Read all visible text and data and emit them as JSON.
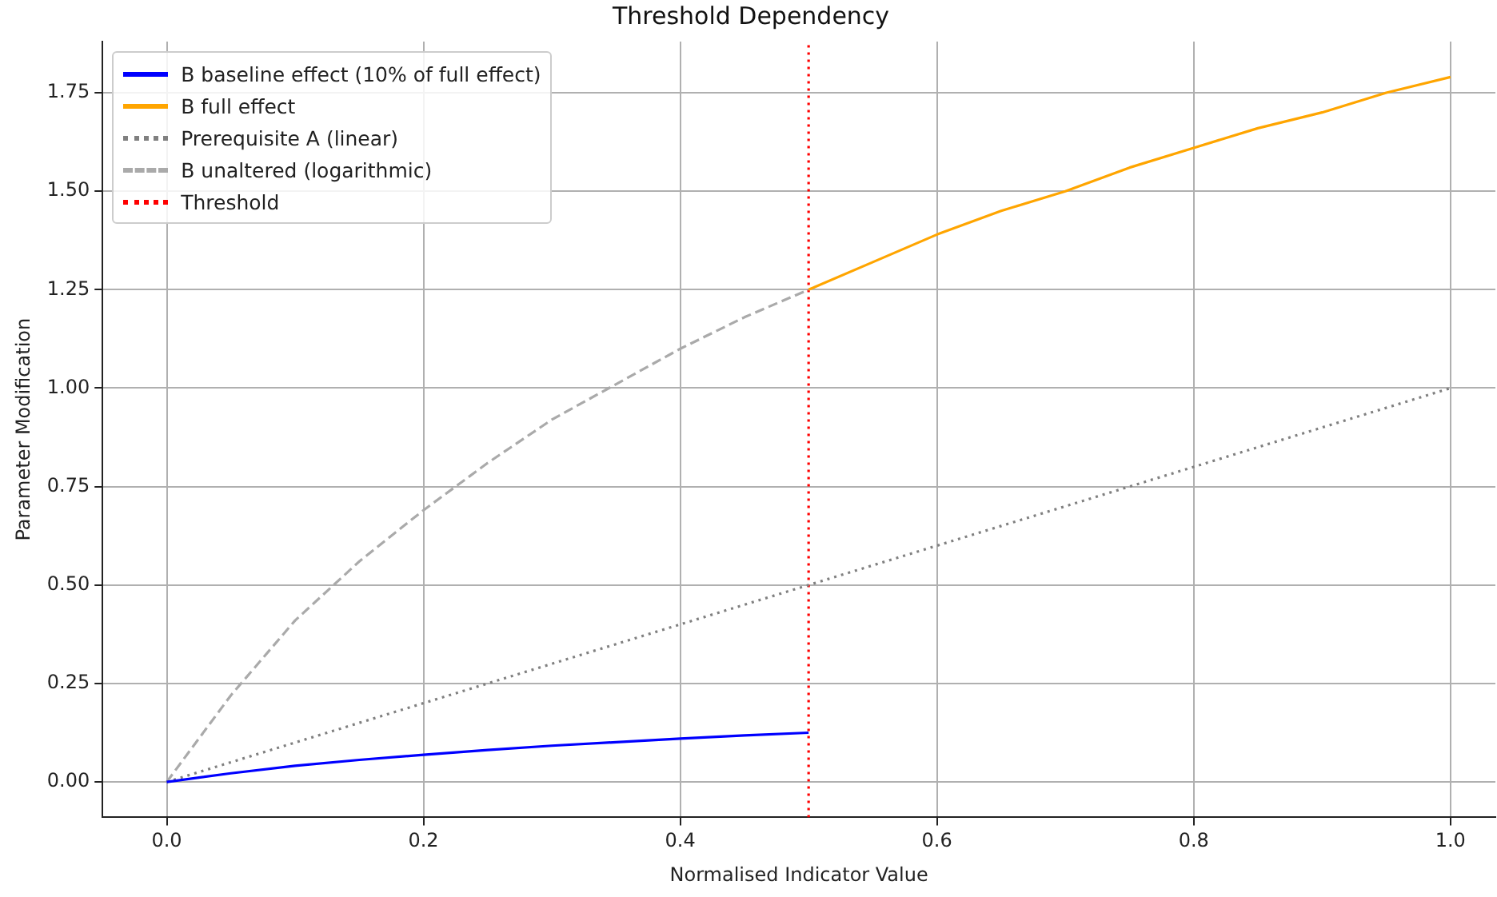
{
  "chart_data": {
    "type": "line",
    "title": "Threshold Dependency",
    "xlabel": "Normalised Indicator Value",
    "ylabel": "Parameter Modification",
    "x": [
      0,
      0.05,
      0.1,
      0.15,
      0.2,
      0.25,
      0.3,
      0.35,
      0.4,
      0.45,
      0.5,
      0.55,
      0.6,
      0.65,
      0.7,
      0.75,
      0.8,
      0.85,
      0.9,
      0.95,
      1
    ],
    "series": [
      {
        "name": "B baseline effect (10% of full effect)",
        "color": "#0000ff",
        "line_style": "solid",
        "values": [
          0,
          0.022,
          0.041,
          0.056,
          0.069,
          0.081,
          0.092,
          0.101,
          0.11,
          0.118,
          0.125,
          null,
          null,
          null,
          null,
          null,
          null,
          null,
          null,
          null,
          null
        ]
      },
      {
        "name": "B full effect",
        "color": "#ffa500",
        "line_style": "solid",
        "values": [
          null,
          null,
          null,
          null,
          null,
          null,
          null,
          null,
          null,
          null,
          1.25,
          1.32,
          1.39,
          1.45,
          1.5,
          1.56,
          1.61,
          1.66,
          1.7,
          1.75,
          1.79
        ]
      },
      {
        "name": "Prerequisite A (linear)",
        "color": "#808080",
        "line_style": "dotted",
        "values": [
          0,
          0.05,
          0.1,
          0.15,
          0.2,
          0.25,
          0.3,
          0.35,
          0.4,
          0.45,
          0.5,
          0.55,
          0.6,
          0.65,
          0.7,
          0.75,
          0.8,
          0.85,
          0.9,
          0.95,
          1
        ]
      },
      {
        "name": "B unaltered (logarithmic)",
        "color": "#aaaaaa",
        "line_style": "dashed",
        "values": [
          0,
          0.22,
          0.41,
          0.56,
          0.69,
          0.81,
          0.92,
          1.01,
          1.1,
          1.18,
          1.25,
          null,
          null,
          null,
          null,
          null,
          null,
          null,
          null,
          null,
          null
        ]
      },
      {
        "name": "Threshold",
        "type": "line",
        "color": "#ff0000",
        "line_style": "dotted",
        "x": [
          0.5,
          0.5
        ],
        "values": [
          -0.09,
          1.88
        ]
      }
    ],
    "xlim": [
      -0.05,
      1.035
    ],
    "xticks": [
      {
        "value": 0,
        "label": "0.0"
      },
      {
        "value": 0.2,
        "label": "0.2"
      },
      {
        "value": 0.4,
        "label": "0.4"
      },
      {
        "value": 0.6,
        "label": "0.6"
      },
      {
        "value": 0.8,
        "label": "0.8"
      },
      {
        "value": 1,
        "label": "1.0"
      }
    ],
    "ylim": [
      -0.09,
      1.88
    ],
    "yticks": [
      {
        "value": 0,
        "label": "0.00"
      },
      {
        "value": 0.25,
        "label": "0.25"
      },
      {
        "value": 0.5,
        "label": "0.50"
      },
      {
        "value": 0.75,
        "label": "0.75"
      },
      {
        "value": 1,
        "label": "1.00"
      },
      {
        "value": 1.25,
        "label": "1.25"
      },
      {
        "value": 1.5,
        "label": "1.50"
      },
      {
        "value": 1.75,
        "label": "1.75"
      }
    ],
    "grid": true,
    "legend": "top left",
    "marker": "none"
  }
}
